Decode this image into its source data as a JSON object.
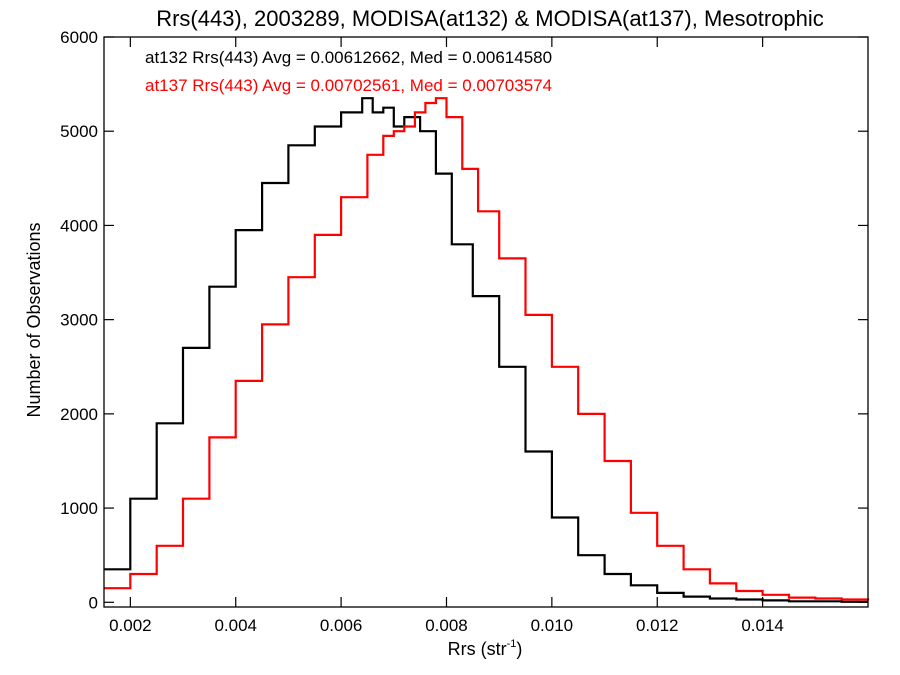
{
  "chart_data": {
    "type": "line",
    "title": "Rrs(443), 2003289, MODISA(at132) & MODISA(at137), Mesotrophic",
    "xlabel_main": "Rrs (str",
    "xlabel_sup": "-1",
    "xlabel_close": ")",
    "ylabel": "Number of Observations",
    "xlim": [
      0.0015,
      0.016
    ],
    "ylim": [
      -50,
      6000
    ],
    "x_ticks": [
      0.002,
      0.004,
      0.006,
      0.008,
      0.01,
      0.012,
      0.014
    ],
    "x_tick_labels": [
      "0.002",
      "0.004",
      "0.006",
      "0.008",
      "0.010",
      "0.012",
      "0.014"
    ],
    "y_ticks": [
      0,
      1000,
      2000,
      3000,
      4000,
      5000,
      6000
    ],
    "y_tick_labels": [
      "0",
      "1000",
      "2000",
      "3000",
      "4000",
      "5000",
      "6000"
    ],
    "legend_placement": "top-left",
    "series": [
      {
        "name": "at132",
        "label": "at132 Rrs(443) Avg = 0.00612662, Med = 0.00614580",
        "color": "#000000",
        "x": [
          0.0015,
          0.002,
          0.0025,
          0.003,
          0.0035,
          0.004,
          0.0045,
          0.005,
          0.0055,
          0.006,
          0.0064,
          0.0066,
          0.0068,
          0.007,
          0.0072,
          0.0075,
          0.0078,
          0.0081,
          0.0085,
          0.009,
          0.0095,
          0.01,
          0.0105,
          0.011,
          0.0115,
          0.012,
          0.0125,
          0.013,
          0.0135,
          0.014,
          0.0145,
          0.015,
          0.0155,
          0.016
        ],
        "values": [
          350,
          1100,
          1900,
          2700,
          3350,
          3950,
          4450,
          4850,
          5050,
          5200,
          5350,
          5200,
          5250,
          5050,
          5150,
          5000,
          4550,
          3800,
          3250,
          2500,
          1600,
          900,
          500,
          300,
          180,
          100,
          60,
          40,
          30,
          20,
          10,
          10,
          5,
          5
        ]
      },
      {
        "name": "at137",
        "label": "at137 Rrs(443) Avg = 0.00702561, Med = 0.00703574",
        "color": "#ff0000",
        "x": [
          0.0015,
          0.002,
          0.0025,
          0.003,
          0.0035,
          0.004,
          0.0045,
          0.005,
          0.0055,
          0.006,
          0.0065,
          0.0068,
          0.007,
          0.0072,
          0.0074,
          0.0076,
          0.0078,
          0.008,
          0.0083,
          0.0086,
          0.009,
          0.0095,
          0.01,
          0.0105,
          0.011,
          0.0115,
          0.012,
          0.0125,
          0.013,
          0.0135,
          0.014,
          0.0145,
          0.015,
          0.0155,
          0.016
        ],
        "values": [
          150,
          300,
          600,
          1100,
          1750,
          2350,
          2950,
          3450,
          3900,
          4300,
          4750,
          4950,
          5000,
          5050,
          5200,
          5300,
          5350,
          5150,
          4600,
          4150,
          3650,
          3050,
          2500,
          2000,
          1500,
          950,
          600,
          350,
          200,
          120,
          80,
          50,
          40,
          30,
          20
        ]
      }
    ]
  }
}
